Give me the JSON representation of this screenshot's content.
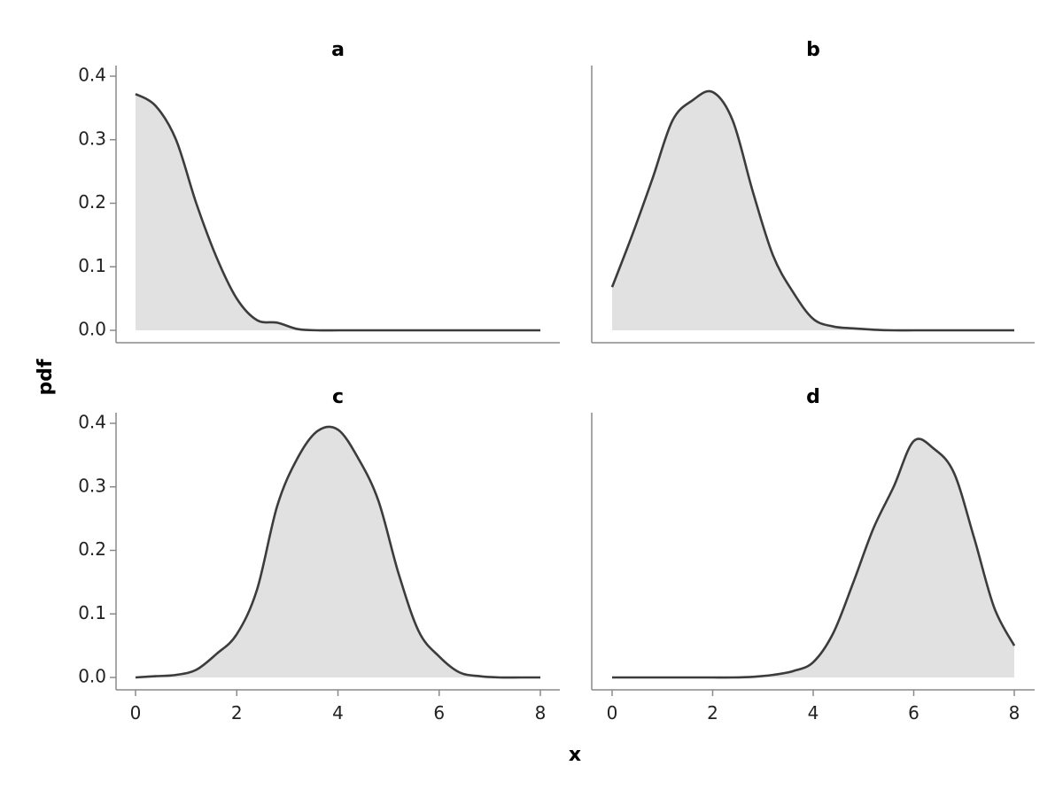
{
  "chart_data": {
    "type": "area",
    "xlabel": "x",
    "ylabel": "pdf",
    "xlim": [
      0,
      8
    ],
    "ylim": [
      0,
      0.4
    ],
    "x_ticks": [
      "0",
      "2",
      "4",
      "6",
      "8"
    ],
    "y_ticks": [
      "0.0",
      "0.1",
      "0.2",
      "0.3",
      "0.4"
    ],
    "grid": false,
    "legend": "none",
    "colors": {
      "fill": "#e1e1e1",
      "line": "#3c3c3c",
      "axis": "#8a8a8a"
    },
    "x": [
      0,
      0.4,
      0.8,
      1.2,
      1.6,
      2.0,
      2.4,
      2.8,
      3.2,
      3.6,
      4.0,
      4.4,
      4.8,
      5.2,
      5.6,
      6.0,
      6.4,
      6.8,
      7.2,
      7.6,
      8.0
    ],
    "series": [
      {
        "name": "a",
        "values": [
          0.372,
          0.353,
          0.3,
          0.2,
          0.115,
          0.05,
          0.016,
          0.012,
          0.002,
          0.0,
          0.0,
          0.0,
          0.0,
          0.0,
          0.0,
          0.0,
          0.0,
          0.0,
          0.0,
          0.0,
          0.0
        ]
      },
      {
        "name": "b",
        "values": [
          0.068,
          0.15,
          0.238,
          0.33,
          0.362,
          0.375,
          0.33,
          0.218,
          0.118,
          0.06,
          0.018,
          0.006,
          0.003,
          0.001,
          0.0,
          0.0,
          0.0,
          0.0,
          0.0,
          0.0,
          0.0
        ]
      },
      {
        "name": "c",
        "values": [
          0.0,
          0.002,
          0.004,
          0.012,
          0.037,
          0.068,
          0.138,
          0.27,
          0.345,
          0.388,
          0.39,
          0.345,
          0.278,
          0.163,
          0.072,
          0.033,
          0.008,
          0.002,
          0.0,
          0.0,
          0.0
        ]
      },
      {
        "name": "d",
        "values": [
          0.0,
          0.0,
          0.0,
          0.0,
          0.0,
          0.0,
          0.0,
          0.001,
          0.004,
          0.01,
          0.024,
          0.07,
          0.15,
          0.235,
          0.3,
          0.372,
          0.36,
          0.322,
          0.22,
          0.11,
          0.05
        ]
      }
    ]
  }
}
